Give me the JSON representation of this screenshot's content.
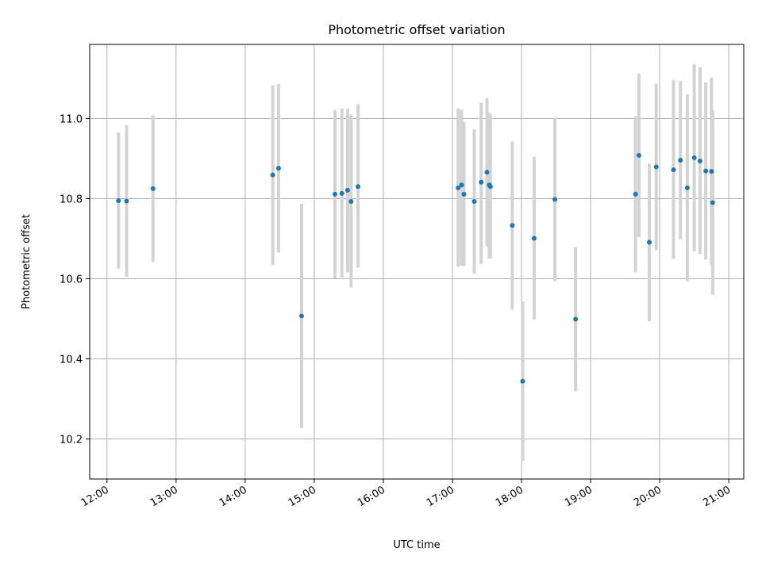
{
  "chart_data": {
    "type": "scatter",
    "title": "Photometric offset variation",
    "xlabel": "UTC time",
    "ylabel": "Photometric offset",
    "xlim": [
      "11:45",
      "21:13"
    ],
    "ylim": [
      10.1,
      11.185
    ],
    "grid": true,
    "x_ticks": [
      "12:00",
      "13:00",
      "14:00",
      "15:00",
      "16:00",
      "17:00",
      "18:00",
      "19:00",
      "20:00",
      "21:00"
    ],
    "y_ticks": [
      "10.2",
      "10.4",
      "10.6",
      "10.8",
      "11.0"
    ],
    "y_tick_values": [
      10.2,
      10.4,
      10.6,
      10.8,
      11.0
    ],
    "series": [
      {
        "color": "#1f77b4",
        "error_bar_color": "#d3d3d3",
        "points": [
          {
            "t": "12:10",
            "y": 10.795,
            "lo": 10.625,
            "hi": 10.965
          },
          {
            "t": "12:17",
            "y": 10.794,
            "lo": 10.604,
            "hi": 10.984
          },
          {
            "t": "12:40",
            "y": 10.825,
            "lo": 10.642,
            "hi": 11.008
          },
          {
            "t": "14:24",
            "y": 10.859,
            "lo": 10.635,
            "hi": 11.083
          },
          {
            "t": "14:29",
            "y": 10.876,
            "lo": 10.666,
            "hi": 11.086
          },
          {
            "t": "14:49",
            "y": 10.507,
            "lo": 10.227,
            "hi": 10.787
          },
          {
            "t": "15:18",
            "y": 10.811,
            "lo": 10.601,
            "hi": 11.021
          },
          {
            "t": "15:24",
            "y": 10.813,
            "lo": 10.603,
            "hi": 11.025
          },
          {
            "t": "15:29",
            "y": 10.821,
            "lo": 10.616,
            "hi": 11.024
          },
          {
            "t": "15:32",
            "y": 10.793,
            "lo": 10.578,
            "hi": 11.01
          },
          {
            "t": "15:38",
            "y": 10.83,
            "lo": 10.628,
            "hi": 11.036
          },
          {
            "t": "17:05",
            "y": 10.827,
            "lo": 10.63,
            "hi": 11.025
          },
          {
            "t": "17:08",
            "y": 10.834,
            "lo": 10.633,
            "hi": 11.022
          },
          {
            "t": "17:10",
            "y": 10.811,
            "lo": 10.631,
            "hi": 10.991
          },
          {
            "t": "17:19",
            "y": 10.793,
            "lo": 10.613,
            "hi": 10.973
          },
          {
            "t": "17:25",
            "y": 10.841,
            "lo": 10.637,
            "hi": 11.04
          },
          {
            "t": "17:30",
            "y": 10.866,
            "lo": 10.681,
            "hi": 11.051
          },
          {
            "t": "17:32",
            "y": 10.834,
            "lo": 10.651,
            "hi": 11.014
          },
          {
            "t": "17:33",
            "y": 10.83,
            "lo": 10.651,
            "hi": 11.009
          },
          {
            "t": "17:52",
            "y": 10.733,
            "lo": 10.523,
            "hi": 10.943
          },
          {
            "t": "18:01",
            "y": 10.344,
            "lo": 10.145,
            "hi": 10.544
          },
          {
            "t": "18:11",
            "y": 10.701,
            "lo": 10.498,
            "hi": 10.905
          },
          {
            "t": "18:29",
            "y": 10.798,
            "lo": 10.594,
            "hi": 11.002
          },
          {
            "t": "18:47",
            "y": 10.499,
            "lo": 10.319,
            "hi": 10.679
          },
          {
            "t": "19:39",
            "y": 10.811,
            "lo": 10.616,
            "hi": 11.006
          },
          {
            "t": "19:42",
            "y": 10.908,
            "lo": 10.704,
            "hi": 11.112
          },
          {
            "t": "19:51",
            "y": 10.691,
            "lo": 10.494,
            "hi": 10.888
          },
          {
            "t": "19:57",
            "y": 10.879,
            "lo": 10.671,
            "hi": 11.087
          },
          {
            "t": "20:12",
            "y": 10.872,
            "lo": 10.65,
            "hi": 11.096
          },
          {
            "t": "20:18",
            "y": 10.896,
            "lo": 10.698,
            "hi": 11.094
          },
          {
            "t": "20:24",
            "y": 10.827,
            "lo": 10.594,
            "hi": 11.06
          },
          {
            "t": "20:30",
            "y": 10.902,
            "lo": 10.668,
            "hi": 11.136
          },
          {
            "t": "20:35",
            "y": 10.894,
            "lo": 10.662,
            "hi": 11.129
          },
          {
            "t": "20:40",
            "y": 10.869,
            "lo": 10.648,
            "hi": 11.09
          },
          {
            "t": "20:45",
            "y": 10.868,
            "lo": 10.634,
            "hi": 11.102
          },
          {
            "t": "20:46",
            "y": 10.79,
            "lo": 10.56,
            "hi": 11.02
          }
        ]
      }
    ]
  }
}
